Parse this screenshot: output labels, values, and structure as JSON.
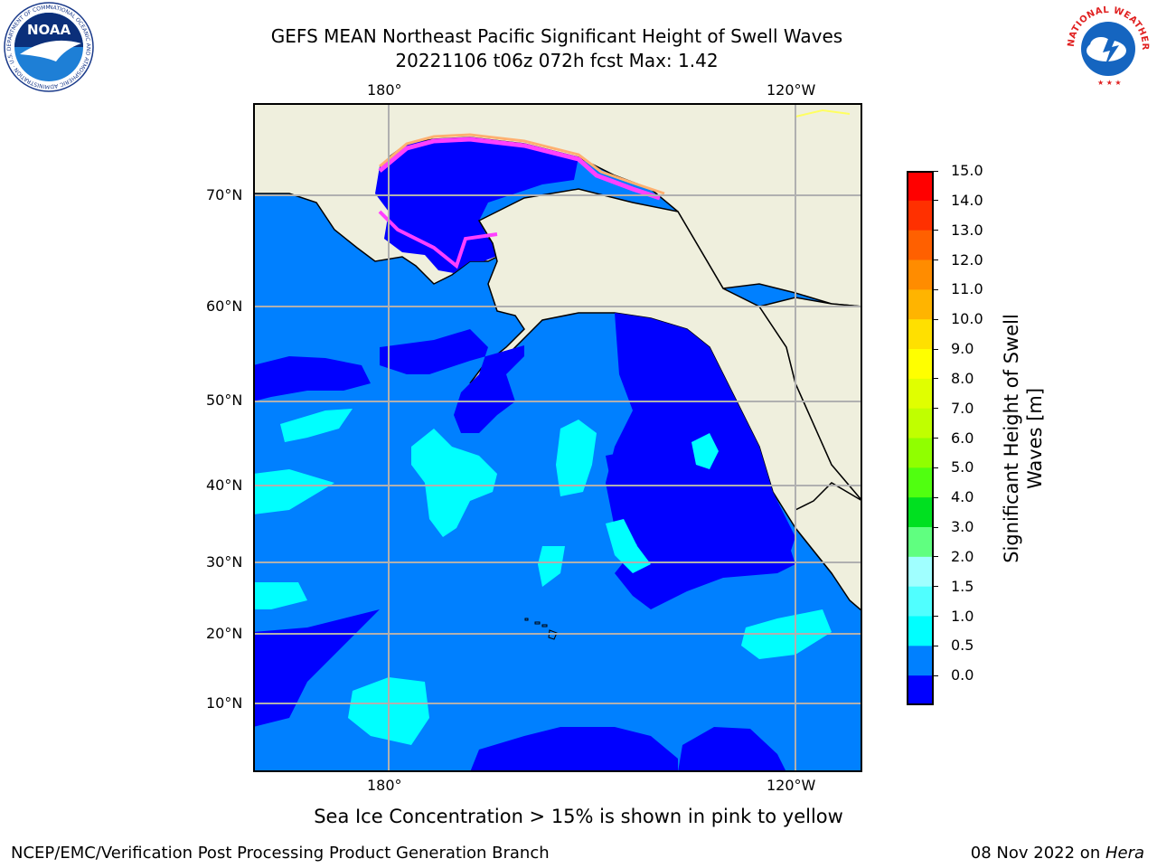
{
  "header": {
    "title_line1": "GEFS MEAN Northeast Pacific Significant Height of Swell Waves",
    "title_line2": "20221106 t06z 072h fcst   Max: 1.42"
  },
  "logos": {
    "noaa_text": "NOAA",
    "noaa_ring_text": "NATIONAL OCEANIC AND ATMOSPHERIC ADMINISTRATION · U.S. DEPARTMENT OF COMMERCE",
    "nws_ring_text": "NATIONAL WEATHER SERVICE"
  },
  "map": {
    "lon_labels": [
      "180°",
      "120°W"
    ],
    "lat_labels": [
      "70°N",
      "60°N",
      "50°N",
      "40°N",
      "30°N",
      "20°N",
      "10°N"
    ],
    "colors": {
      "land": "#efefdd",
      "ocean_mid": "#0080ff",
      "ocean_low": "#0000ff",
      "ocean_high": "#00ffff",
      "grid": "#b0b0b0",
      "ice_pink": "#ff40ff",
      "ice_orange": "#ffb070",
      "ice_yellow": "#ffff60"
    }
  },
  "colorbar": {
    "label_line1": "Significant Height of Swell",
    "label_line2": "Waves [m]",
    "ticks": [
      "15.0",
      "14.0",
      "13.0",
      "12.0",
      "11.0",
      "10.0",
      "9.0",
      "8.0",
      "7.0",
      "6.0",
      "5.0",
      "4.0",
      "3.0",
      "2.0",
      "1.5",
      "1.0",
      "0.5",
      "0.0"
    ],
    "bands_top_to_bottom": [
      "#ff0000",
      "#ff3000",
      "#ff6000",
      "#ff8c00",
      "#ffb400",
      "#ffe000",
      "#ffff00",
      "#e0ff00",
      "#c0ff00",
      "#90ff00",
      "#50ff10",
      "#00e020",
      "#60ff80",
      "#a0ffff",
      "#50ffff",
      "#00ffff",
      "#0080ff",
      "#0000ff"
    ]
  },
  "captions": {
    "ice_note": "Sea Ice Concentration > 15% is shown in pink to yellow",
    "footer_left": "NCEP/EMC/Verification Post Processing Product Generation Branch",
    "footer_right_prefix": "08 Nov 2022 on ",
    "footer_right_host": "Hera"
  }
}
